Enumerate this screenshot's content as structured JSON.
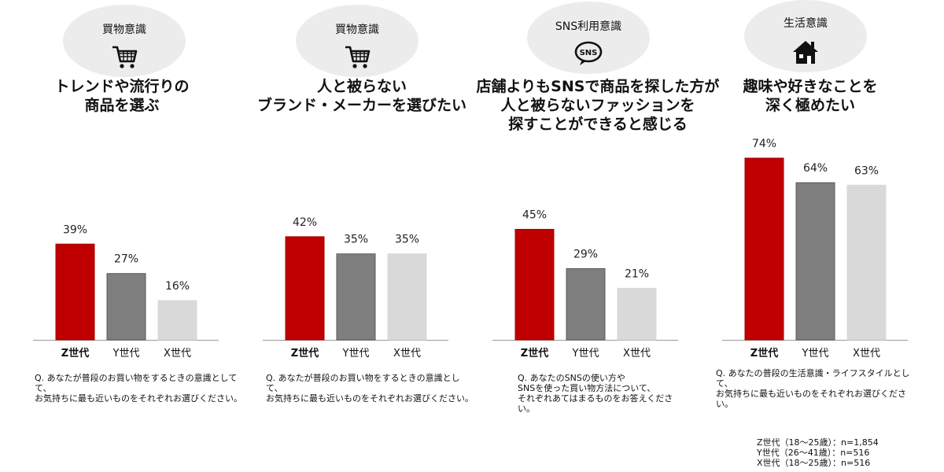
{
  "panels": [
    {
      "badge": "買物意識",
      "icon": "shopping-cart-icon",
      "headline": [
        "トレンドや流行りの",
        "商品を選ぶ"
      ],
      "question": [
        "Q. あなたが普段のお買い物をするときの意識として",
        "て、",
        "お気持ちに最も近いものをそれぞれお選びください。"
      ]
    },
    {
      "badge": "買物意識",
      "icon": "shopping-cart-icon",
      "headline": [
        "人と被らない",
        "ブランド・メーカーを選びたい"
      ],
      "question": [
        "Q. あなたが普段のお買い物をするときの意識とし",
        "て、",
        "お気持ちに最も近いものをそれぞれお選びください。"
      ]
    },
    {
      "badge": "SNS利用意識",
      "icon": "sns-chat-icon",
      "headline": [
        "店舗よりもSNSで商品を探した方が",
        "人と被らないファッションを",
        "探すことができると感じる"
      ],
      "question": [
        "Q. あなたのSNSの使い方や",
        "SNSを使った買い物方法について、",
        "それぞれあてはまるものをお答えくださ",
        "い。"
      ]
    },
    {
      "badge": "生活意識",
      "icon": "house-icon",
      "headline": [
        "趣味や好きなことを",
        "深く極めたい"
      ],
      "question": [
        "Q. あなたの普段の生活意識・ライフスタイルとし",
        "て、",
        "お気持ちに最も近いものをそれぞれお選びくださ",
        "い。"
      ]
    }
  ],
  "chart_data": {
    "type": "bar",
    "categories": [
      "Z世代",
      "Y世代",
      "X世代"
    ],
    "groups": [
      {
        "values": [
          39,
          27,
          16
        ],
        "labels": [
          "39%",
          "27%",
          "16%"
        ]
      },
      {
        "values": [
          42,
          35,
          35
        ],
        "labels": [
          "42%",
          "35%",
          "35%"
        ]
      },
      {
        "values": [
          45,
          29,
          21
        ],
        "labels": [
          "45%",
          "29%",
          "21%"
        ]
      },
      {
        "values": [
          74,
          64,
          63
        ],
        "labels": [
          "74%",
          "64%",
          "63%"
        ]
      }
    ],
    "colors": [
      "#c00000",
      "#7f7f7f",
      "#d9d9d9"
    ],
    "ylim": [
      0,
      100
    ],
    "grid": false
  },
  "sample_note": [
    "Z世代（18～25歳）：n=1,854",
    "Y世代（26～41歳）：n=516",
    "X世代（18～25歳）：n=516"
  ]
}
